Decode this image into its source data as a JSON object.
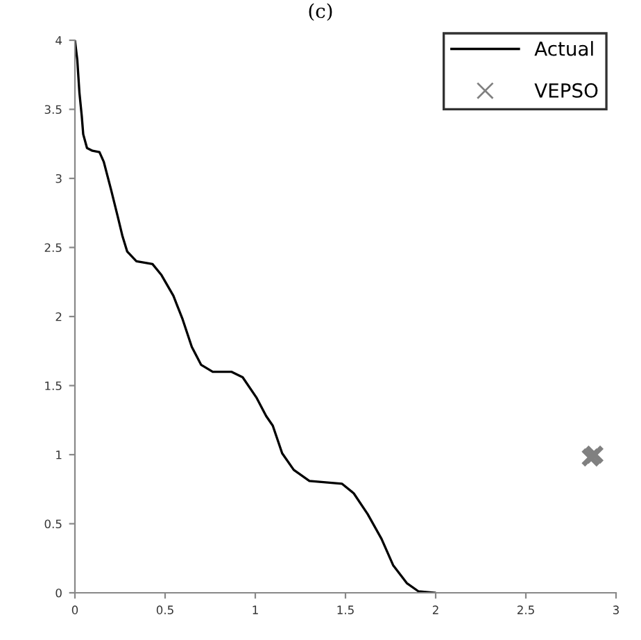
{
  "chart_data": {
    "type": "line",
    "title": "(c)",
    "series": [
      {
        "name": "Actual",
        "color": "#000000",
        "marker": "none",
        "x": [
          0,
          0.013,
          0.025,
          0.038,
          0.046,
          0.067,
          0.097,
          0.136,
          0.16,
          0.2,
          0.238,
          0.264,
          0.29,
          0.341,
          0.43,
          0.48,
          0.546,
          0.597,
          0.648,
          0.7,
          0.764,
          0.867,
          0.93,
          1.008,
          1.06,
          1.097,
          1.149,
          1.213,
          1.3,
          1.48,
          1.546,
          1.623,
          1.7,
          1.764,
          1.84,
          1.905,
          1.995
        ],
        "values": [
          4,
          3.86,
          3.62,
          3.45,
          3.32,
          3.22,
          3.2,
          3.19,
          3.12,
          2.92,
          2.72,
          2.58,
          2.47,
          2.4,
          2.38,
          2.3,
          2.15,
          1.98,
          1.78,
          1.65,
          1.6,
          1.6,
          1.56,
          1.41,
          1.28,
          1.21,
          1.01,
          0.89,
          0.81,
          0.79,
          0.72,
          0.57,
          0.39,
          0.2,
          0.07,
          0.01,
          0
        ]
      },
      {
        "name": "VEPSO",
        "color": "#808080",
        "type": "scatter",
        "marker": "cross",
        "x": [
          2.86,
          2.88
        ],
        "values": [
          0.98,
          1.0
        ]
      }
    ],
    "xlim": [
      0,
      3
    ],
    "xticks": [
      0,
      0.5,
      1,
      1.5,
      2,
      2.5,
      3
    ],
    "ylim": [
      0,
      4
    ],
    "yticks": [
      0,
      0.5,
      1,
      1.5,
      2,
      2.5,
      3,
      3.5,
      4
    ],
    "grid": false,
    "legend": "top right"
  }
}
